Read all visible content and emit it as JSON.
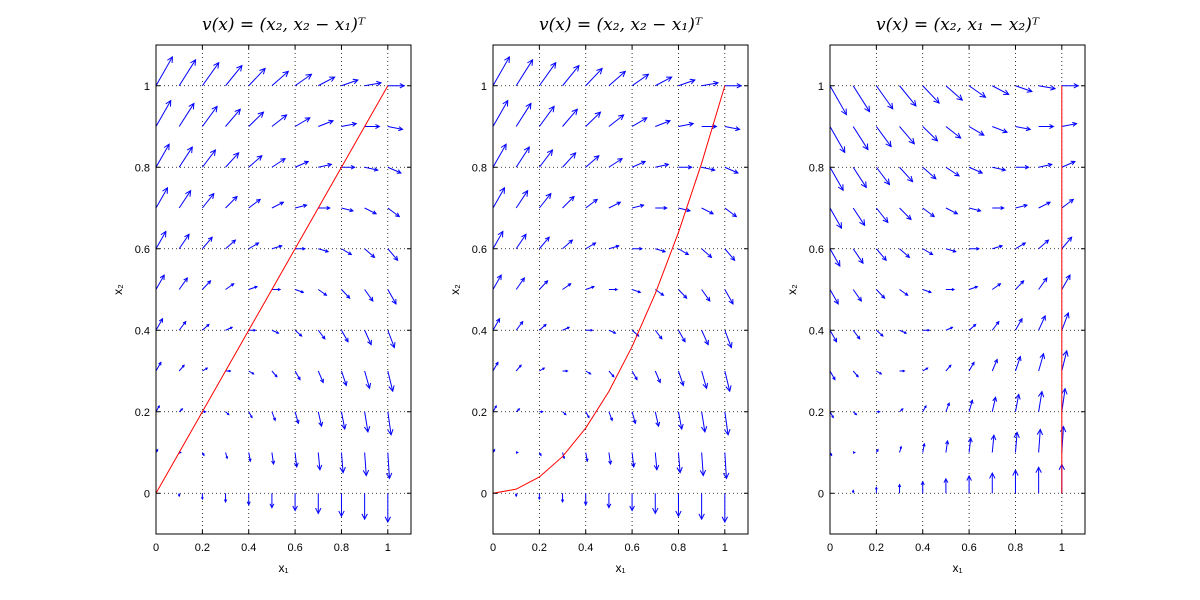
{
  "chart_data": [
    {
      "type": "quiver",
      "title": "v(x) = (x₂, x₂ − x₁)ᵀ",
      "xlabel": "x₁",
      "ylabel": "x₂",
      "xlim": [
        0,
        1.1
      ],
      "ylim": [
        -0.1,
        1.1
      ],
      "xticks": [
        "0",
        "0.2",
        "0.4",
        "0.6",
        "0.8",
        "1"
      ],
      "yticks": [
        "0",
        "0.2",
        "0.4",
        "0.6",
        "0.8",
        "1"
      ],
      "grid": true,
      "vector_field": {
        "u": "x2",
        "v": "x2 - x1",
        "grid": {
          "start": 0,
          "end": 1,
          "step": 0.1
        }
      },
      "arrow_color": "#0000ff",
      "curve": {
        "color": "#ff0000",
        "x": [
          0,
          0.1,
          0.2,
          0.3,
          0.4,
          0.5,
          0.6,
          0.7,
          0.8,
          0.9,
          1.0
        ],
        "y": [
          0,
          0.1,
          0.2,
          0.3,
          0.4,
          0.5,
          0.6,
          0.7,
          0.8,
          0.9,
          1.0
        ]
      }
    },
    {
      "type": "quiver",
      "title": "v(x) = (x₂, x₂ − x₁)ᵀ",
      "xlabel": "x₁",
      "ylabel": "x₂",
      "xlim": [
        0,
        1.1
      ],
      "ylim": [
        -0.1,
        1.1
      ],
      "xticks": [
        "0",
        "0.2",
        "0.4",
        "0.6",
        "0.8",
        "1"
      ],
      "yticks": [
        "0",
        "0.2",
        "0.4",
        "0.6",
        "0.8",
        "1"
      ],
      "grid": true,
      "vector_field": {
        "u": "x2",
        "v": "x2 - x1",
        "grid": {
          "start": 0,
          "end": 1,
          "step": 0.1
        }
      },
      "arrow_color": "#0000ff",
      "curve": {
        "color": "#ff0000",
        "x": [
          0,
          0.1,
          0.2,
          0.3,
          0.4,
          0.5,
          0.6,
          0.7,
          0.8,
          0.9,
          1.0
        ],
        "y": [
          0,
          0.01,
          0.04,
          0.09,
          0.16,
          0.25,
          0.36,
          0.49,
          0.64,
          0.81,
          1.0
        ]
      }
    },
    {
      "type": "quiver",
      "title": "v(x) = (x₂, x₁ − x₂)ᵀ",
      "xlabel": "x₁",
      "ylabel": "x₂",
      "xlim": [
        0,
        1.1
      ],
      "ylim": [
        -0.1,
        1.1
      ],
      "xticks": [
        "0",
        "0.2",
        "0.4",
        "0.6",
        "0.8",
        "1"
      ],
      "yticks": [
        "0",
        "0.2",
        "0.4",
        "0.6",
        "0.8",
        "1"
      ],
      "grid": true,
      "vector_field": {
        "u": "x2",
        "v": "x1 - x2",
        "grid": {
          "start": 0,
          "end": 1,
          "step": 0.1
        }
      },
      "arrow_color": "#0000ff",
      "curve": {
        "color": "#ff0000",
        "x": [
          1.0,
          1.0
        ],
        "y": [
          0,
          1.0
        ]
      }
    }
  ]
}
